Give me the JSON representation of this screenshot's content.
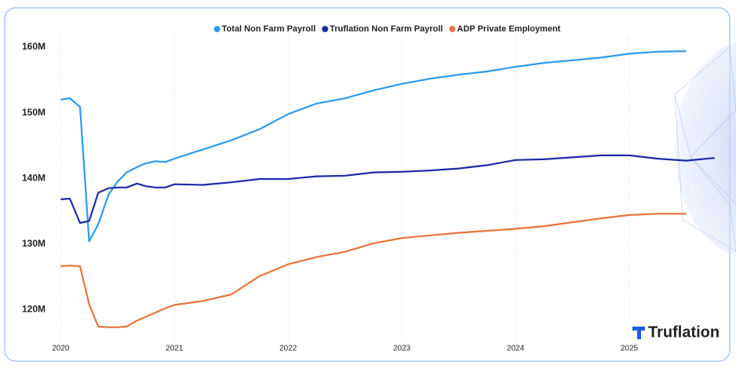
{
  "chart_data": {
    "type": "line",
    "x": [
      2020.0,
      2020.08,
      2020.17,
      2020.25,
      2020.33,
      2020.42,
      2020.5,
      2020.58,
      2020.67,
      2020.75,
      2020.83,
      2020.92,
      2021.0,
      2021.25,
      2021.5,
      2021.75,
      2022.0,
      2022.25,
      2022.5,
      2022.75,
      2023.0,
      2023.25,
      2023.5,
      2023.75,
      2024.0,
      2024.25,
      2024.5,
      2024.75,
      2025.0,
      2025.25,
      2025.5,
      2025.75
    ],
    "series": [
      {
        "name": "Total Non Farm Payroll",
        "color": "#2e9bf0",
        "values": [
          152.0,
          152.2,
          150.9,
          130.4,
          133.0,
          137.5,
          139.5,
          140.9,
          141.7,
          142.3,
          142.6,
          142.5,
          143.0,
          144.4,
          145.8,
          147.5,
          149.8,
          151.4,
          152.2,
          153.4,
          154.4,
          155.2,
          155.8,
          156.3,
          157.0,
          157.6,
          158.0,
          158.4,
          159.0,
          159.3,
          159.4,
          null
        ]
      },
      {
        "name": "Truflation Non Farm Payroll",
        "color": "#1f2aa8",
        "values": [
          136.8,
          136.9,
          133.2,
          133.5,
          137.8,
          138.5,
          138.6,
          138.6,
          139.2,
          138.8,
          138.6,
          138.6,
          139.1,
          139.0,
          139.4,
          139.9,
          139.9,
          140.3,
          140.4,
          140.9,
          141.0,
          141.2,
          141.5,
          142.0,
          142.8,
          142.9,
          143.2,
          143.5,
          143.5,
          143.0,
          142.7,
          143.1
        ]
      },
      {
        "name": "ADP Private Employment",
        "color": "#e8743b",
        "values": [
          126.6,
          126.7,
          126.6,
          120.8,
          117.4,
          117.3,
          117.3,
          117.4,
          118.3,
          118.9,
          119.5,
          120.2,
          120.7,
          121.3,
          122.3,
          125.1,
          126.9,
          128.0,
          128.8,
          130.1,
          130.9,
          131.3,
          131.7,
          132.0,
          132.3,
          132.7,
          133.3,
          133.9,
          134.4,
          134.6,
          134.6,
          null
        ]
      }
    ],
    "xlim": [
      2019.88,
      2025.78
    ],
    "xticks": [
      2020,
      2021,
      2022,
      2023,
      2024,
      2025
    ],
    "ylim": [
      115,
      163
    ],
    "yticks": [
      {
        "value": 120,
        "label": "120M"
      },
      {
        "value": 130,
        "label": "130M"
      },
      {
        "value": 140,
        "label": "140M"
      },
      {
        "value": 150,
        "label": "150M"
      },
      {
        "value": 160,
        "label": "160M"
      }
    ],
    "grid": true,
    "legend": "top",
    "logo": "Truflation"
  }
}
